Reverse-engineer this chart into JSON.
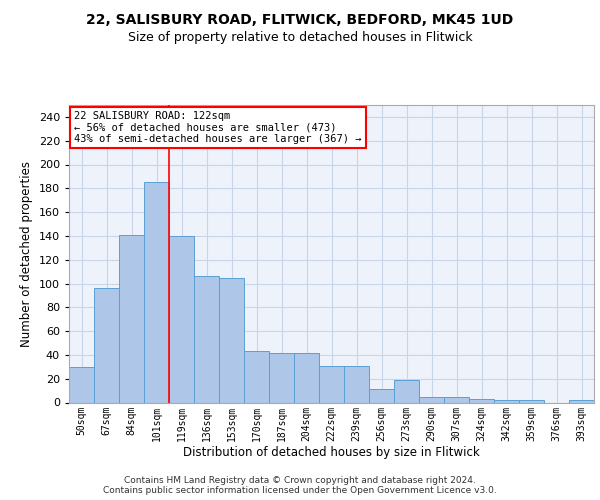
{
  "title1": "22, SALISBURY ROAD, FLITWICK, BEDFORD, MK45 1UD",
  "title2": "Size of property relative to detached houses in Flitwick",
  "xlabel": "Distribution of detached houses by size in Flitwick",
  "ylabel": "Number of detached properties",
  "bar_values": [
    30,
    96,
    141,
    185,
    140,
    106,
    105,
    43,
    42,
    42,
    31,
    31,
    11,
    19,
    5,
    5,
    3,
    2,
    2,
    0,
    2
  ],
  "bin_labels": [
    "50sqm",
    "67sqm",
    "84sqm",
    "101sqm",
    "119sqm",
    "136sqm",
    "153sqm",
    "170sqm",
    "187sqm",
    "204sqm",
    "222sqm",
    "239sqm",
    "256sqm",
    "273sqm",
    "290sqm",
    "307sqm",
    "324sqm",
    "342sqm",
    "359sqm",
    "376sqm",
    "393sqm"
  ],
  "bar_color": "#aec6e8",
  "bar_edge_color": "#5a9fd4",
  "property_line_x": 3.5,
  "annotation_text": "22 SALISBURY ROAD: 122sqm\n← 56% of detached houses are smaller (473)\n43% of semi-detached houses are larger (367) →",
  "vline_color": "red",
  "ylim": [
    0,
    250
  ],
  "yticks": [
    0,
    20,
    40,
    60,
    80,
    100,
    120,
    140,
    160,
    180,
    200,
    220,
    240
  ],
  "grid_color": "#c8d4e8",
  "bg_color": "#eef2fb",
  "footer1": "Contains HM Land Registry data © Crown copyright and database right 2024.",
  "footer2": "Contains public sector information licensed under the Open Government Licence v3.0."
}
